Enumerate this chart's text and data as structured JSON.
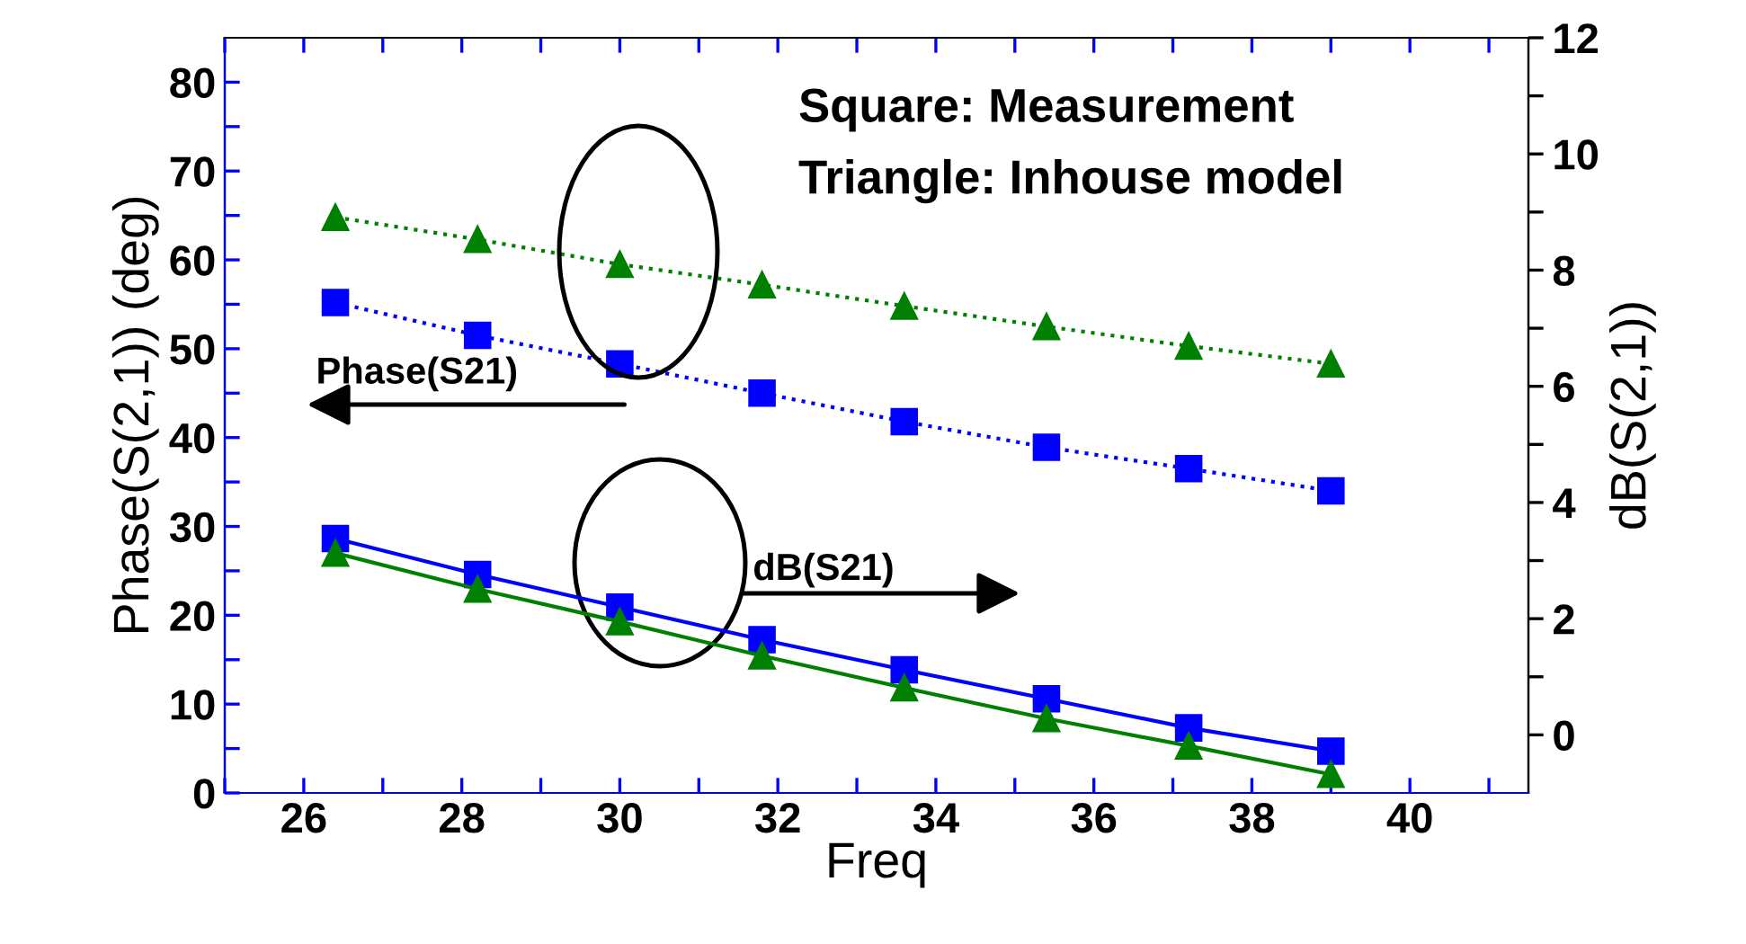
{
  "chart_data": {
    "type": "line",
    "xlabel": "Freq",
    "ylabel": "Phase(S(2,1)) (deg)",
    "y2label": "dB(S(2,1))",
    "x": [
      26.4,
      28.2,
      30,
      31.8,
      33.6,
      35.4,
      37.2,
      39
    ],
    "xlim": [
      25,
      41.5
    ],
    "xticks": [
      {
        "value": 25,
        "label": null
      },
      26,
      {
        "value": 27,
        "label": null
      },
      28,
      {
        "value": 29,
        "label": null
      },
      30,
      {
        "value": 31,
        "label": null
      },
      32,
      {
        "value": 33,
        "label": null
      },
      34,
      {
        "value": 35,
        "label": null
      },
      36,
      {
        "value": 37,
        "label": null
      },
      38,
      {
        "value": 39,
        "label": null
      },
      40,
      {
        "value": 41,
        "label": null
      }
    ],
    "ylim": [
      0,
      85
    ],
    "yticks": [
      0,
      {
        "value": 5,
        "label": null
      },
      10,
      {
        "value": 15,
        "label": null
      },
      20,
      {
        "value": 25,
        "label": null
      },
      30,
      {
        "value": 35,
        "label": null
      },
      40,
      {
        "value": 45,
        "label": null
      },
      50,
      {
        "value": 55,
        "label": null
      },
      60,
      {
        "value": 65,
        "label": null
      },
      70,
      {
        "value": 75,
        "label": null
      },
      80
    ],
    "y2lim": [
      -1,
      12
    ],
    "y2ticks": [
      0,
      {
        "value": 1,
        "label": null
      },
      2,
      {
        "value": 3,
        "label": null
      },
      4,
      {
        "value": 5,
        "label": null
      },
      6,
      {
        "value": 7,
        "label": null
      },
      8,
      {
        "value": 9,
        "label": null
      },
      10,
      {
        "value": 11,
        "label": null
      },
      12
    ],
    "series": [
      {
        "color": "#0000ff",
        "marker": "square",
        "line_style": "dotted",
        "values": [
          55.2,
          51.5,
          48.3,
          45.0,
          41.8,
          38.9,
          36.5,
          34.0
        ]
      },
      {
        "color": "#008000",
        "marker": "triangle",
        "line_style": "dotted",
        "values": [
          64.8,
          62.3,
          59.5,
          57.2,
          54.8,
          52.5,
          50.3,
          48.3
        ]
      },
      {
        "color": "#0000ff",
        "marker": "square",
        "line_style": "solid",
        "axis": "y2",
        "values": [
          3.38,
          2.76,
          2.2,
          1.64,
          1.12,
          0.62,
          0.12,
          -0.28
        ]
      },
      {
        "color": "#008000",
        "marker": "triangle",
        "line_style": "solid",
        "axis": "y2",
        "values": [
          3.13,
          2.51,
          1.95,
          1.36,
          0.81,
          0.28,
          -0.19,
          -0.68
        ]
      }
    ],
    "annotations": [
      "Square: Measurement",
      "Triangle: Inhouse model",
      "Phase(S21)",
      "dB(S21)"
    ],
    "grid": false,
    "legend": false
  }
}
